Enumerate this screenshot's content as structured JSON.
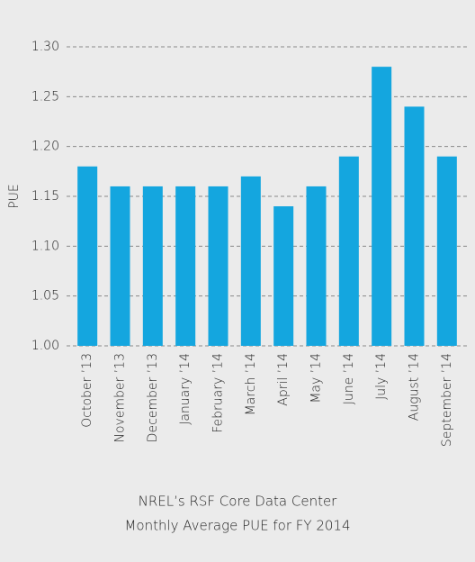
{
  "chart_data": {
    "type": "bar",
    "title": [
      "NREL’s RSF Core Data Center",
      "Monthly Average PUE for FY 2014"
    ],
    "y_label": "PUE",
    "categories": [
      "October ’13",
      "November ’13",
      "December ’13",
      "January ’14",
      "February ’14",
      "March ’14",
      "April ’14",
      "May ’14",
      "June ’14",
      "July ’14",
      "August ’14",
      "September ’14"
    ],
    "values": [
      1.18,
      1.16,
      1.16,
      1.16,
      1.16,
      1.17,
      1.14,
      1.16,
      1.19,
      1.28,
      1.24,
      1.19
    ],
    "color": "#14a6df",
    "ylim": [
      1.0,
      1.3
    ],
    "yticks": [
      {
        "value": 1.0,
        "label": "1.00"
      },
      1.05,
      {
        "value": 1.1,
        "label": "1.10"
      },
      1.15,
      {
        "value": 1.2,
        "label": "1.20"
      },
      1.25,
      {
        "value": 1.3,
        "label": "1.30"
      }
    ],
    "grid": true
  }
}
